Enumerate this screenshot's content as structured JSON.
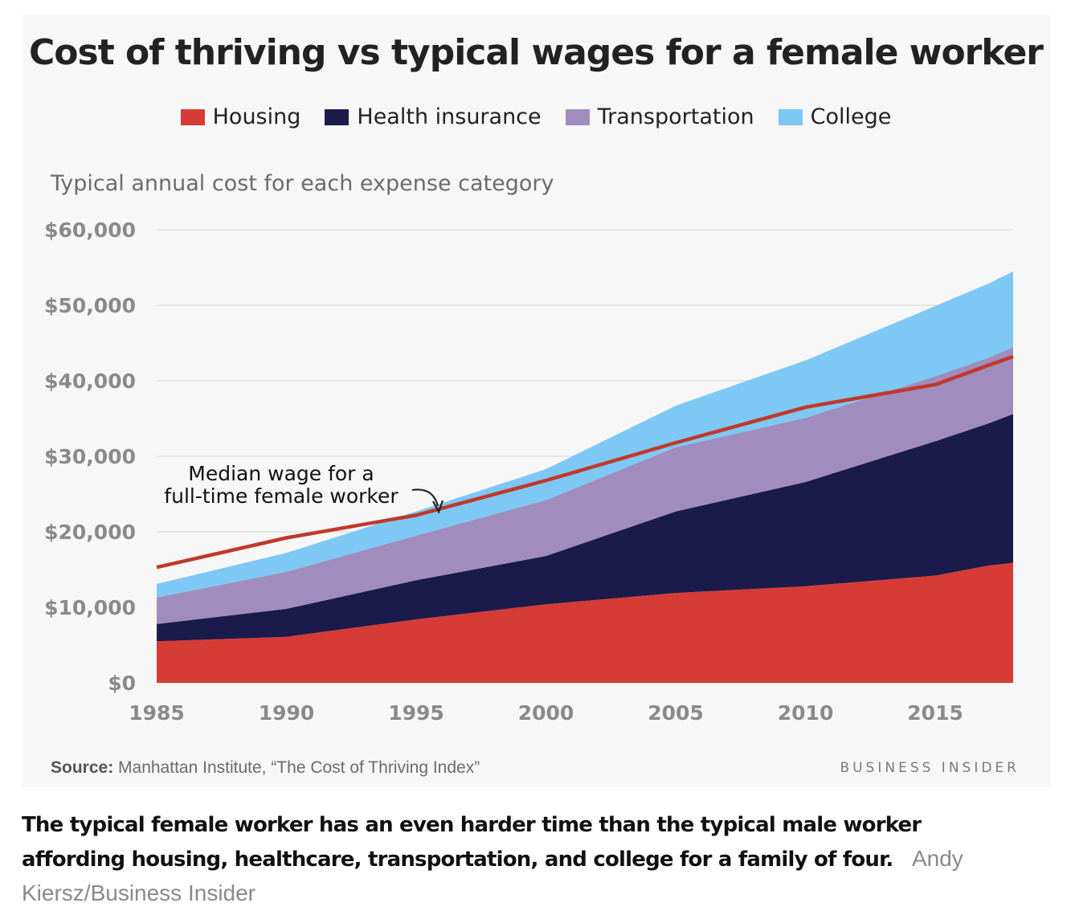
{
  "title": "Cost of thriving vs typical wages for a female worker",
  "subtitle": "Typical annual cost for each expense category",
  "legend": [
    {
      "label": "Housing",
      "color": "#d63b35"
    },
    {
      "label": "Health insurance",
      "color": "#1b1b4b"
    },
    {
      "label": "Transportation",
      "color": "#a08dbd"
    },
    {
      "label": "College",
      "color": "#7ec8f5"
    }
  ],
  "annotation": {
    "line1": "Median wage for a",
    "line2": "full-time female worker"
  },
  "source": {
    "label": "Source:",
    "text": "Manhattan Institute, “The Cost of Thriving Index”"
  },
  "brand": "BUSINESS INSIDER",
  "caption": {
    "text": "The typical female worker has an even harder time than the typical male worker affording housing, healthcare, transportation, and college for a family of four.",
    "credit": "Andy Kiersz/Business Insider"
  },
  "chart_data": {
    "type": "area",
    "stacked": true,
    "x": [
      1985,
      1990,
      1995,
      2000,
      2005,
      2010,
      2015,
      2017,
      2018
    ],
    "xticks": [
      1985,
      1990,
      1995,
      2000,
      2005,
      2010,
      2015
    ],
    "xtick_labels": [
      "1985",
      "1990",
      "1995",
      "2000",
      "2005",
      "2010",
      "2015"
    ],
    "ylim": [
      0,
      60000
    ],
    "yticks": [
      0,
      10000,
      20000,
      30000,
      40000,
      50000,
      60000
    ],
    "ytick_labels": [
      "$0",
      "$10,000",
      "$20,000",
      "$30,000",
      "$40,000",
      "$50,000",
      "$60,000"
    ],
    "grid": true,
    "legend_position": "top",
    "series": [
      {
        "name": "Housing",
        "color": "#d63b35",
        "values": [
          5500,
          6100,
          8400,
          10400,
          11900,
          12800,
          14200,
          15500,
          15900
        ]
      },
      {
        "name": "Health insurance",
        "color": "#1b1b4b",
        "values": [
          2300,
          3700,
          5200,
          6400,
          10800,
          13800,
          17800,
          18800,
          19700
        ]
      },
      {
        "name": "Transportation",
        "color": "#a08dbd",
        "values": [
          3500,
          4900,
          5900,
          7400,
          8500,
          8500,
          8600,
          8700,
          8800
        ]
      },
      {
        "name": "College",
        "color": "#7ec8f5",
        "values": [
          1800,
          2500,
          3200,
          4100,
          5500,
          7600,
          9300,
          9800,
          10100
        ]
      }
    ],
    "line": {
      "color": "#c0392b",
      "values": [
        15300,
        19200,
        22200,
        26800,
        31800,
        36500,
        39500,
        42000,
        43200
      ]
    }
  }
}
